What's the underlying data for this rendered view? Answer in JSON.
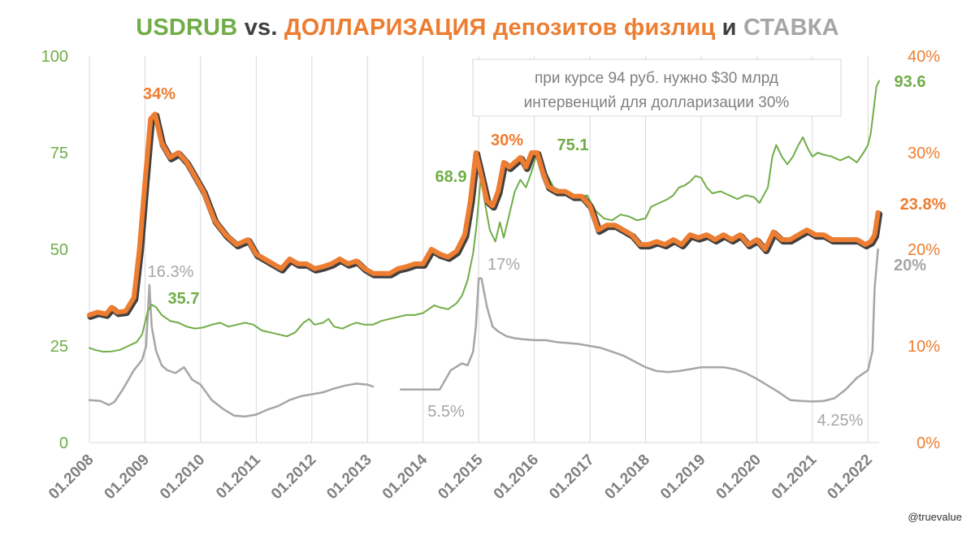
{
  "title": {
    "part1": "USDRUB",
    "part2": " vs. ",
    "part3": "ДОЛЛАРИЗАЦИЯ депозитов физлиц",
    "part4": " и ",
    "part5": "СТАВКА"
  },
  "colors": {
    "usdrub": "#70ad47",
    "dollarization": "#ed7d31",
    "rate": "#a6a6a6",
    "dark": "#404040",
    "grid": "#d9d9d9",
    "axis_text_left": "#70ad47",
    "axis_text_right": "#ed7d31",
    "xlabel": "#808080"
  },
  "annotation_box": {
    "line1": "при курсе 94 руб. нужно $30 млрд",
    "line2": "интервенций для долларизации 30%"
  },
  "watermark": "@truevalue",
  "chart_data": {
    "type": "line",
    "title": "USDRUB vs. ДОЛЛАРИЗАЦИЯ депозитов физлиц и СТАВКА",
    "x_range": [
      2008.0,
      2022.2
    ],
    "categories": [
      "01.2008",
      "01.2009",
      "01.2010",
      "01.2011",
      "01.2012",
      "01.2013",
      "01.2014",
      "01.2015",
      "01.2016",
      "01.2017",
      "01.2018",
      "01.2019",
      "01.2020",
      "01.2021",
      "01.2022"
    ],
    "y_left": {
      "range": [
        0,
        100
      ],
      "ticks": [
        "0",
        "25",
        "50",
        "75",
        "100"
      ]
    },
    "y_right": {
      "range": [
        0,
        40
      ],
      "ticks": [
        "0%",
        "10%",
        "20%",
        "30%",
        "40%"
      ]
    },
    "grid": "vertical",
    "series": [
      {
        "key": "usdrub",
        "axis": "left",
        "x": [
          2008.0,
          2008.1,
          2008.25,
          2008.4,
          2008.55,
          2008.7,
          2008.85,
          2008.95,
          2009.05,
          2009.12,
          2009.2,
          2009.3,
          2009.45,
          2009.6,
          2009.75,
          2009.9,
          2010.05,
          2010.2,
          2010.35,
          2010.5,
          2010.65,
          2010.8,
          2010.95,
          2011.1,
          2011.25,
          2011.4,
          2011.55,
          2011.7,
          2011.85,
          2011.95,
          2012.05,
          2012.2,
          2012.3,
          2012.4,
          2012.55,
          2012.7,
          2012.8,
          2012.95,
          2013.1,
          2013.25,
          2013.4,
          2013.55,
          2013.7,
          2013.85,
          2014.0,
          2014.1,
          2014.2,
          2014.3,
          2014.45,
          2014.6,
          2014.7,
          2014.8,
          2014.9,
          2014.96,
          2015.04,
          2015.1,
          2015.2,
          2015.3,
          2015.38,
          2015.45,
          2015.55,
          2015.65,
          2015.75,
          2015.85,
          2015.95,
          2016.05,
          2016.1,
          2016.2,
          2016.35,
          2016.5,
          2016.65,
          2016.8,
          2016.95,
          2017.1,
          2017.25,
          2017.4,
          2017.55,
          2017.7,
          2017.85,
          2018.0,
          2018.1,
          2018.25,
          2018.4,
          2018.5,
          2018.6,
          2018.7,
          2018.8,
          2018.9,
          2019.0,
          2019.1,
          2019.2,
          2019.35,
          2019.5,
          2019.65,
          2019.8,
          2019.95,
          2020.05,
          2020.2,
          2020.28,
          2020.35,
          2020.45,
          2020.55,
          2020.65,
          2020.75,
          2020.83,
          2020.92,
          2021.0,
          2021.1,
          2021.2,
          2021.35,
          2021.5,
          2021.65,
          2021.8,
          2021.92,
          2022.0,
          2022.05,
          2022.1,
          2022.15,
          2022.2
        ],
        "y": [
          24.5,
          24,
          23.5,
          23.6,
          24,
          25,
          26,
          28,
          34,
          35.7,
          35,
          33,
          31.5,
          31,
          30,
          29.5,
          29.8,
          30.5,
          31,
          30,
          30.5,
          31,
          30.5,
          29,
          28.5,
          28,
          27.5,
          28.5,
          31,
          32,
          30.5,
          31,
          32,
          30,
          29.5,
          30.5,
          31,
          30.5,
          30.5,
          31.5,
          32,
          32.5,
          33,
          33,
          33.5,
          34.5,
          35.5,
          35,
          34.5,
          36,
          38,
          42,
          49,
          56,
          68.9,
          63,
          55,
          52,
          57,
          53,
          59,
          65,
          68,
          66,
          70,
          75.1,
          74,
          70,
          66,
          65,
          64,
          63,
          64,
          60,
          58,
          57.5,
          59,
          58.5,
          57.5,
          58,
          61,
          62,
          63,
          64,
          66,
          66.5,
          67.5,
          69,
          68.5,
          66,
          64.5,
          65,
          64,
          63,
          64,
          63.5,
          62,
          66,
          74,
          77,
          74,
          72,
          74,
          77,
          79,
          76,
          74,
          75,
          74.5,
          74,
          73,
          74,
          72.5,
          75,
          77,
          80,
          86,
          92,
          93.6
        ]
      },
      {
        "key": "dollarization",
        "axis": "right",
        "x": [
          2008.0,
          2008.15,
          2008.3,
          2008.4,
          2008.5,
          2008.65,
          2008.8,
          2008.9,
          2009.0,
          2009.1,
          2009.18,
          2009.3,
          2009.45,
          2009.6,
          2009.75,
          2009.9,
          2010.05,
          2010.25,
          2010.45,
          2010.65,
          2010.85,
          2011.0,
          2011.15,
          2011.3,
          2011.45,
          2011.6,
          2011.75,
          2011.9,
          2012.05,
          2012.2,
          2012.35,
          2012.5,
          2012.65,
          2012.8,
          2012.95,
          2013.1,
          2013.25,
          2013.4,
          2013.55,
          2013.7,
          2013.85,
          2014.0,
          2014.15,
          2014.3,
          2014.45,
          2014.6,
          2014.75,
          2014.85,
          2014.95,
          2015.05,
          2015.15,
          2015.25,
          2015.35,
          2015.45,
          2015.55,
          2015.65,
          2015.75,
          2015.85,
          2015.95,
          2016.05,
          2016.15,
          2016.25,
          2016.4,
          2016.55,
          2016.7,
          2016.85,
          2017.0,
          2017.15,
          2017.3,
          2017.45,
          2017.6,
          2017.75,
          2017.9,
          2018.05,
          2018.2,
          2018.35,
          2018.5,
          2018.65,
          2018.8,
          2018.95,
          2019.1,
          2019.25,
          2019.4,
          2019.55,
          2019.7,
          2019.85,
          2020.0,
          2020.15,
          2020.3,
          2020.45,
          2020.6,
          2020.75,
          2020.9,
          2021.05,
          2021.2,
          2021.35,
          2021.5,
          2021.65,
          2021.8,
          2021.95,
          2022.05,
          2022.12,
          2022.18
        ],
        "y": [
          13.2,
          13.5,
          13.3,
          14,
          13.5,
          13.6,
          15,
          20,
          27,
          33.5,
          34,
          31,
          29.5,
          30,
          29,
          27.5,
          26,
          23,
          21.5,
          20.5,
          21,
          19.5,
          19,
          18.5,
          18,
          19,
          18.5,
          18.5,
          18,
          18.2,
          18.5,
          19,
          18.5,
          18.8,
          18,
          17.5,
          17.5,
          17.5,
          18,
          18.2,
          18.5,
          18.5,
          20,
          19.5,
          19.2,
          19.8,
          21.5,
          25,
          30,
          27.5,
          25,
          24.5,
          26,
          29,
          28.5,
          29,
          29.5,
          28.5,
          30,
          30,
          28,
          26.5,
          26,
          26,
          25.5,
          25.5,
          24.5,
          22,
          22.5,
          22.5,
          22,
          21.5,
          20.5,
          20.5,
          20.8,
          20.5,
          21,
          20.5,
          21.5,
          21.2,
          21.5,
          21,
          21.5,
          21,
          21.5,
          20.5,
          21,
          20,
          21.8,
          21,
          21,
          21.5,
          22,
          21.5,
          21.5,
          21,
          21,
          21,
          21,
          20.5,
          20.8,
          21.5,
          23.8
        ]
      },
      {
        "key": "rate",
        "axis": "right",
        "x": [
          2008.0,
          2008.2,
          2008.35,
          2008.45,
          2008.6,
          2008.8,
          2008.9,
          2008.95,
          2009.02,
          2009.08,
          2009.12,
          2009.2,
          2009.3,
          2009.4,
          2009.55,
          2009.7,
          2009.85,
          2010.0,
          2010.2,
          2010.4,
          2010.6,
          2010.8,
          2011.0,
          2011.2,
          2011.4,
          2011.6,
          2011.8,
          2012.0,
          2012.2,
          2012.4,
          2012.6,
          2012.8,
          2013.0,
          2013.1,
          null,
          2013.6,
          2013.8,
          2014.0,
          2014.2,
          2014.3,
          2014.5,
          2014.7,
          2014.8,
          2014.9,
          2014.95,
          2015.0,
          2015.05,
          2015.15,
          2015.25,
          2015.35,
          2015.5,
          2015.65,
          2015.8,
          2016.0,
          2016.2,
          2016.4,
          2016.6,
          2016.8,
          2017.0,
          2017.2,
          2017.4,
          2017.6,
          2017.8,
          2018.0,
          2018.2,
          2018.4,
          2018.6,
          2018.8,
          2019.0,
          2019.2,
          2019.4,
          2019.6,
          2019.8,
          2020.0,
          2020.2,
          2020.4,
          2020.6,
          2020.8,
          2021.0,
          2021.2,
          2021.4,
          2021.6,
          2021.8,
          2022.0,
          2022.08,
          2022.12,
          2022.18
        ],
        "y": [
          4.4,
          4.3,
          3.9,
          4.2,
          5.5,
          7.5,
          8.2,
          8.6,
          10,
          16.3,
          12,
          9.5,
          8,
          7.5,
          7.2,
          7.8,
          6.5,
          6,
          4.4,
          3.5,
          2.8,
          2.7,
          2.9,
          3.4,
          3.8,
          4.4,
          4.8,
          5,
          5.2,
          5.6,
          5.9,
          6.1,
          6,
          5.8,
          null,
          5.5,
          5.5,
          5.5,
          5.5,
          5.5,
          7.5,
          8.2,
          8,
          9.4,
          12,
          17,
          17,
          14,
          12,
          11.5,
          11,
          10.8,
          10.7,
          10.6,
          10.6,
          10.4,
          10.3,
          10.2,
          10,
          9.8,
          9.4,
          9,
          8.4,
          7.8,
          7.4,
          7.3,
          7.4,
          7.6,
          7.8,
          7.8,
          7.8,
          7.6,
          7.2,
          6.6,
          5.9,
          5.2,
          4.4,
          4.3,
          4.25,
          4.3,
          4.6,
          5.5,
          6.7,
          7.5,
          9.5,
          16,
          20
        ]
      }
    ],
    "labels": [
      {
        "key": "lbl_34",
        "text": "34%",
        "color": "dollarization"
      },
      {
        "key": "lbl_357",
        "text": "35.7",
        "color": "usdrub"
      },
      {
        "key": "lbl_163",
        "text": "16.3%",
        "color": "rate"
      },
      {
        "key": "lbl_689",
        "text": "68.9",
        "color": "usdrub"
      },
      {
        "key": "lbl_30",
        "text": "30%",
        "color": "dollarization"
      },
      {
        "key": "lbl_751",
        "text": "75.1",
        "color": "usdrub"
      },
      {
        "key": "lbl_17",
        "text": "17%",
        "color": "rate"
      },
      {
        "key": "lbl_55",
        "text": "5.5%",
        "color": "rate"
      },
      {
        "key": "lbl_425",
        "text": "4.25%",
        "color": "rate"
      },
      {
        "key": "lbl_936",
        "text": "93.6",
        "color": "usdrub"
      },
      {
        "key": "lbl_238",
        "text": "23.8%",
        "color": "dollarization"
      },
      {
        "key": "lbl_20",
        "text": "20%",
        "color": "rate"
      }
    ]
  }
}
